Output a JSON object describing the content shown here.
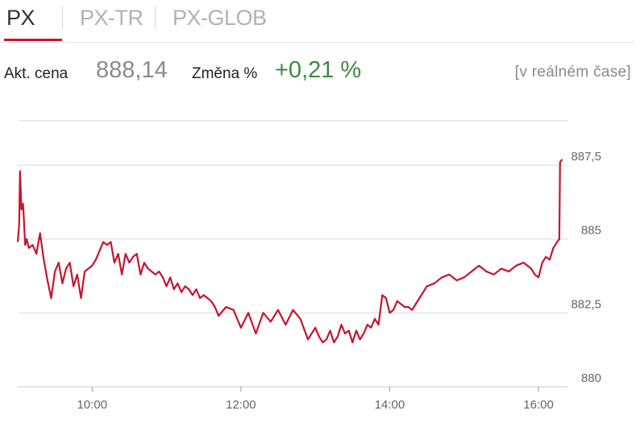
{
  "tabs": [
    {
      "label": "PX",
      "active": true
    },
    {
      "label": "PX-TR",
      "active": false
    },
    {
      "label": "PX-GLOB",
      "active": false
    }
  ],
  "info": {
    "price_label": "Akt. cena",
    "price_value": "888,14",
    "change_label": "Změna %",
    "change_value": "+0,21 %",
    "realtime_label": "[v reálném čase]"
  },
  "colors": {
    "accent": "#c5152f",
    "positive": "#3c8a3c",
    "muted": "#8a8a8a"
  },
  "chart_data": {
    "type": "line",
    "title": "",
    "xlabel": "",
    "ylabel": "",
    "x_unit": "hours",
    "xlim": [
      9.0,
      16.4
    ],
    "ylim": [
      880,
      889
    ],
    "yticks": [
      880,
      882.5,
      885,
      887.5
    ],
    "ytick_labels": [
      "880",
      "882,5",
      "885",
      "887,5"
    ],
    "xticks": [
      10,
      12,
      14,
      16
    ],
    "xtick_labels": [
      "10:00",
      "12:00",
      "14:00",
      "16:00"
    ],
    "grid": true,
    "series": [
      {
        "x": [
          9.0,
          9.02,
          9.03,
          9.05,
          9.07,
          9.08,
          9.1,
          9.12,
          9.15,
          9.2,
          9.25,
          9.3,
          9.35,
          9.4,
          9.45,
          9.5,
          9.55,
          9.6,
          9.65,
          9.7,
          9.75,
          9.8,
          9.85,
          9.9,
          9.95,
          10.0,
          10.05,
          10.1,
          10.15,
          10.2,
          10.25,
          10.3,
          10.35,
          10.4,
          10.45,
          10.5,
          10.55,
          10.6,
          10.65,
          10.7,
          10.75,
          10.8,
          10.85,
          10.9,
          10.95,
          11.0,
          11.05,
          11.1,
          11.15,
          11.2,
          11.25,
          11.3,
          11.35,
          11.4,
          11.45,
          11.5,
          11.55,
          11.6,
          11.65,
          11.7,
          11.8,
          11.9,
          12.0,
          12.1,
          12.2,
          12.3,
          12.4,
          12.5,
          12.6,
          12.7,
          12.8,
          12.9,
          13.0,
          13.05,
          13.1,
          13.15,
          13.2,
          13.25,
          13.3,
          13.35,
          13.4,
          13.45,
          13.5,
          13.55,
          13.6,
          13.65,
          13.7,
          13.75,
          13.8,
          13.85,
          13.9,
          13.95,
          14.0,
          14.05,
          14.1,
          14.15,
          14.2,
          14.25,
          14.3,
          14.4,
          14.5,
          14.6,
          14.7,
          14.8,
          14.9,
          15.0,
          15.1,
          15.2,
          15.3,
          15.4,
          15.5,
          15.6,
          15.7,
          15.8,
          15.9,
          15.95,
          16.0,
          16.05,
          16.1,
          16.15,
          16.2,
          16.25,
          16.28,
          16.29,
          16.32
        ],
        "y": [
          884.9,
          885.5,
          887.3,
          886.0,
          886.2,
          885.8,
          884.8,
          885.0,
          884.7,
          884.8,
          884.5,
          885.2,
          884.3,
          883.6,
          883.0,
          883.9,
          884.2,
          883.5,
          884.0,
          884.2,
          883.4,
          883.8,
          883.0,
          883.9,
          884.0,
          884.1,
          884.3,
          884.6,
          884.9,
          884.8,
          884.9,
          884.2,
          884.5,
          883.8,
          884.5,
          884.2,
          884.4,
          884.5,
          883.8,
          884.2,
          884.0,
          883.9,
          883.8,
          883.9,
          883.7,
          883.4,
          883.7,
          883.3,
          883.5,
          883.2,
          883.4,
          883.3,
          883.1,
          883.3,
          883.0,
          883.1,
          883.0,
          882.9,
          882.7,
          882.4,
          882.7,
          882.6,
          882.0,
          882.5,
          881.8,
          882.5,
          882.2,
          882.6,
          882.1,
          882.6,
          882.3,
          881.6,
          882.0,
          881.7,
          881.5,
          881.6,
          881.9,
          881.5,
          881.7,
          882.1,
          881.8,
          881.9,
          881.5,
          881.9,
          881.6,
          881.8,
          882.1,
          882.0,
          882.3,
          882.1,
          883.1,
          883.0,
          882.5,
          882.6,
          882.9,
          882.8,
          882.7,
          882.7,
          882.6,
          883.0,
          883.4,
          883.5,
          883.7,
          883.8,
          883.6,
          883.7,
          883.9,
          884.1,
          883.9,
          883.8,
          884.0,
          883.9,
          884.1,
          884.2,
          884.0,
          883.8,
          883.7,
          884.2,
          884.4,
          884.3,
          884.7,
          884.9,
          885.0,
          887.6,
          887.7
        ]
      }
    ]
  }
}
